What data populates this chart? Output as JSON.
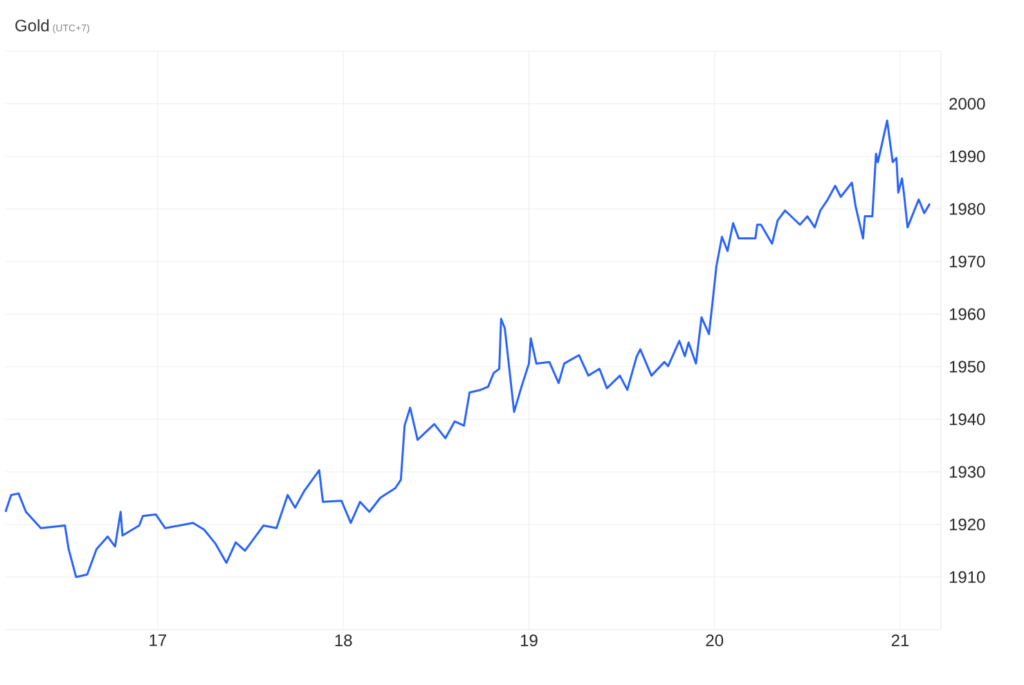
{
  "chart_data": {
    "type": "line",
    "title": "Gold",
    "subtitle": "(UTC+7)",
    "x": [
      16.18,
      16.21,
      16.25,
      16.29,
      16.37,
      16.5,
      16.52,
      16.56,
      16.62,
      16.67,
      16.73,
      16.77,
      16.8,
      16.81,
      16.9,
      16.92,
      16.99,
      17.04,
      17.19,
      17.25,
      17.31,
      17.37,
      17.42,
      17.47,
      17.57,
      17.64,
      17.7,
      17.74,
      17.79,
      17.87,
      17.89,
      17.99,
      18.04,
      18.09,
      18.14,
      18.2,
      18.28,
      18.31,
      18.33,
      18.36,
      18.4,
      18.49,
      18.55,
      18.6,
      18.65,
      18.68,
      18.74,
      18.78,
      18.81,
      18.84,
      18.85,
      18.87,
      18.92,
      18.96,
      19.0,
      19.01,
      19.04,
      19.11,
      19.16,
      19.19,
      19.27,
      19.32,
      19.38,
      19.42,
      19.49,
      19.53,
      19.58,
      19.6,
      19.66,
      19.73,
      19.75,
      19.81,
      19.84,
      19.86,
      19.9,
      19.93,
      19.97,
      19.99,
      20.01,
      20.04,
      20.07,
      20.1,
      20.13,
      20.22,
      20.23,
      20.25,
      20.31,
      20.34,
      20.38,
      20.46,
      20.5,
      20.54,
      20.57,
      20.61,
      20.65,
      20.68,
      20.74,
      20.76,
      20.8,
      20.81,
      20.85,
      20.87,
      20.88,
      20.93,
      20.96,
      20.98,
      20.99,
      21.01,
      21.02,
      21.04,
      21.1,
      21.13,
      21.16
    ],
    "series": [
      {
        "color": "#2962ff",
        "values": [
          1922.4,
          1925.6,
          1925.9,
          1922.4,
          1919.3,
          1919.8,
          1915.3,
          1910,
          1910.5,
          1915.3,
          1917.7,
          1915.8,
          1922.4,
          1917.9,
          1919.8,
          1921.6,
          1921.9,
          1919.3,
          1920.3,
          1919,
          1916.4,
          1912.7,
          1916.6,
          1915,
          1919.8,
          1919.3,
          1925.6,
          1923.2,
          1926.4,
          1930.3,
          1924.3,
          1924.5,
          1920.3,
          1924.3,
          1922.4,
          1925.1,
          1926.9,
          1928.5,
          1938.8,
          1942.2,
          1936.1,
          1939.1,
          1936.4,
          1939.6,
          1938.8,
          1945.1,
          1945.6,
          1946.2,
          1948.8,
          1949.6,
          1959.1,
          1957.3,
          1941.4,
          1946.2,
          1950.6,
          1955.4,
          1950.6,
          1950.9,
          1946.9,
          1950.6,
          1952.2,
          1948.3,
          1949.6,
          1945.9,
          1948.3,
          1945.6,
          1951.9,
          1953.3,
          1948.3,
          1950.9,
          1950.1,
          1954.9,
          1952,
          1954.6,
          1950.6,
          1959.4,
          1956.2,
          1962.5,
          1969.1,
          1974.7,
          1972,
          1977.3,
          1974.4,
          1974.4,
          1977,
          1977,
          1973.4,
          1977.8,
          1979.7,
          1977,
          1978.6,
          1976.5,
          1979.7,
          1981.8,
          1984.4,
          1982.3,
          1985,
          1980.5,
          1974.4,
          1978.6,
          1978.6,
          1990.5,
          1988.9,
          1996.8,
          1988.9,
          1989.7,
          1983.1,
          1985.8,
          1983.1,
          1976.5,
          1981.8,
          1979.2,
          1981
        ]
      }
    ],
    "xlim": [
      16.18,
      21.22
    ],
    "ylim": [
      1900,
      2010
    ],
    "xticks": [
      17,
      18,
      19,
      20,
      21
    ],
    "yticks": [
      1910,
      1920,
      1930,
      1940,
      1950,
      1960,
      1970,
      1980,
      1990,
      2000
    ],
    "grid": true
  }
}
